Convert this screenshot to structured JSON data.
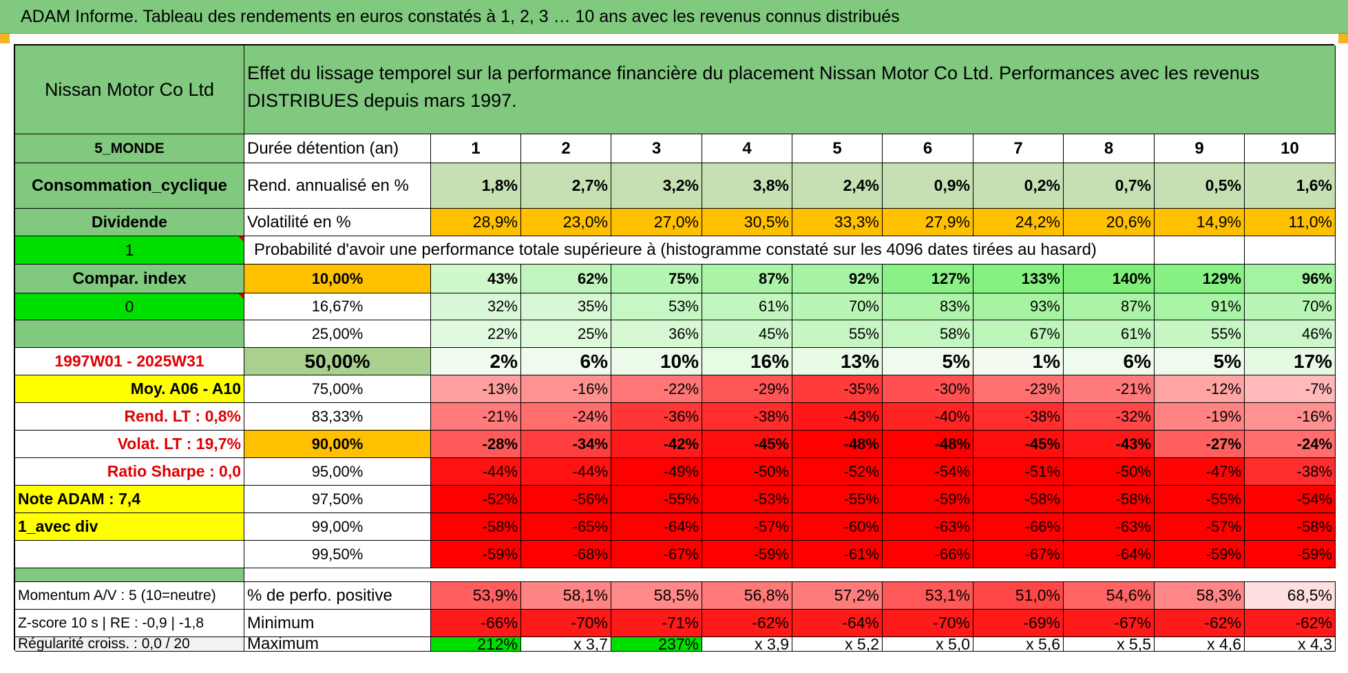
{
  "title": "ADAM Informe. Tableau des rendements en euros constatés à 1, 2, 3 … 10 ans avec les revenus connus distribués",
  "header": {
    "company": "Nissan Motor Co Ltd",
    "description_line1": "Effet du lissage temporel sur la performance financière du placement Nissan Motor Co Ltd. Performances avec les revenus",
    "description_line2": "DISTRIBUES depuis mars 1997."
  },
  "left_panel": {
    "zone": "5_MONDE",
    "sector": "Consommation_cyclique",
    "dividend_label": "Dividende",
    "selector_1": "1",
    "compar_index": "Compar. index",
    "selector_0": "0",
    "period": "1997W01 - 2025W31",
    "moy": "Moy. A06 - A10",
    "rend_lt": "Rend. LT :    0,8%",
    "volat_lt": "Volat. LT :    19,7%",
    "sharpe": "Ratio Sharpe :    0,0",
    "note": "Note ADAM : 7,4",
    "mode": "1_avec div",
    "momentum": "Momentum A/V : 5 (10=neutre)",
    "zscore": "Z-score 10 s | RE : -0,9 | -1,8",
    "regularite": "Régularité croiss. : 0,0 / 20"
  },
  "table": {
    "duration_label": "Durée détention (an)",
    "years": [
      "1",
      "2",
      "3",
      "4",
      "5",
      "6",
      "7",
      "8",
      "9",
      "10"
    ],
    "rend_label": "Rend. annualisé en %",
    "rend": [
      "1,8%",
      "2,7%",
      "3,2%",
      "3,8%",
      "2,4%",
      "0,9%",
      "0,2%",
      "0,7%",
      "0,5%",
      "1,6%"
    ],
    "vol_label": "Volatilité en %",
    "vol": [
      "28,9%",
      "23,0%",
      "27,0%",
      "30,5%",
      "33,3%",
      "27,9%",
      "24,2%",
      "20,6%",
      "14,9%",
      "11,0%"
    ],
    "prob_label": "Probabilité d'avoir une performance totale supérieure à (histogramme constaté sur les 4096 dates tirées au hasard)",
    "quantiles": [
      {
        "label": "10,00%",
        "values": [
          "43%",
          "62%",
          "75%",
          "87%",
          "92%",
          "127%",
          "133%",
          "140%",
          "129%",
          "96%"
        ]
      },
      {
        "label": "16,67%",
        "values": [
          "32%",
          "35%",
          "53%",
          "61%",
          "70%",
          "83%",
          "93%",
          "87%",
          "91%",
          "70%"
        ]
      },
      {
        "label": "25,00%",
        "values": [
          "22%",
          "25%",
          "36%",
          "45%",
          "55%",
          "58%",
          "67%",
          "61%",
          "55%",
          "46%"
        ]
      },
      {
        "label": "50,00%",
        "values": [
          "2%",
          "6%",
          "10%",
          "16%",
          "13%",
          "5%",
          "1%",
          "6%",
          "5%",
          "17%"
        ]
      },
      {
        "label": "75,00%",
        "values": [
          "-13%",
          "-16%",
          "-22%",
          "-29%",
          "-35%",
          "-30%",
          "-23%",
          "-21%",
          "-12%",
          "-7%"
        ]
      },
      {
        "label": "83,33%",
        "values": [
          "-21%",
          "-24%",
          "-36%",
          "-38%",
          "-43%",
          "-40%",
          "-38%",
          "-32%",
          "-19%",
          "-16%"
        ]
      },
      {
        "label": "90,00%",
        "values": [
          "-28%",
          "-34%",
          "-42%",
          "-45%",
          "-48%",
          "-48%",
          "-45%",
          "-43%",
          "-27%",
          "-24%"
        ]
      },
      {
        "label": "95,00%",
        "values": [
          "-44%",
          "-44%",
          "-49%",
          "-50%",
          "-52%",
          "-54%",
          "-51%",
          "-50%",
          "-47%",
          "-38%"
        ]
      },
      {
        "label": "97,50%",
        "values": [
          "-52%",
          "-56%",
          "-55%",
          "-53%",
          "-55%",
          "-59%",
          "-58%",
          "-58%",
          "-55%",
          "-54%"
        ]
      },
      {
        "label": "99,00%",
        "values": [
          "-58%",
          "-65%",
          "-64%",
          "-57%",
          "-60%",
          "-63%",
          "-66%",
          "-63%",
          "-57%",
          "-58%"
        ]
      },
      {
        "label": "99,50%",
        "values": [
          "-59%",
          "-68%",
          "-67%",
          "-59%",
          "-61%",
          "-66%",
          "-67%",
          "-64%",
          "-59%",
          "-59%"
        ]
      }
    ],
    "pos_label": "% de perfo. positive",
    "pos": [
      "53,9%",
      "58,1%",
      "58,5%",
      "56,8%",
      "57,2%",
      "53,1%",
      "51,0%",
      "54,6%",
      "58,3%",
      "68,5%"
    ],
    "min_label": "Minimum",
    "min": [
      "-66%",
      "-70%",
      "-71%",
      "-62%",
      "-64%",
      "-70%",
      "-69%",
      "-67%",
      "-62%",
      "-62%"
    ],
    "max_label": "Maximum",
    "max": [
      "212%",
      "x 3,7",
      "237%",
      "x 3,9",
      "x 5,2",
      "x 5,0",
      "x 5,6",
      "x 5,5",
      "x 4,6",
      "x 4,3"
    ]
  },
  "colors": {
    "header_green": "#80c97f",
    "bright_green": "#00e000",
    "yellow": "#ffff00",
    "orange": "#ffc000",
    "light_green": "#c6e0b4",
    "accent_red": "#e00000"
  }
}
